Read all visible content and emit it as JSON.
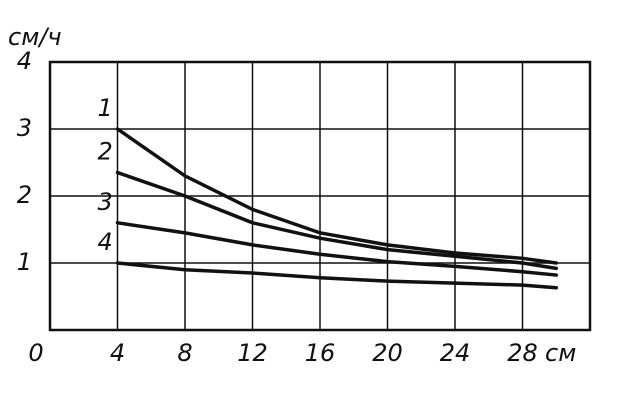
{
  "chart_data": {
    "type": "line",
    "y_label": "см/ч",
    "x_unit": "см",
    "x": [
      4,
      8,
      12,
      16,
      20,
      24,
      28,
      30
    ],
    "series": [
      {
        "name": "1",
        "color": "#111111",
        "values": [
          3.0,
          2.3,
          1.8,
          1.45,
          1.27,
          1.15,
          1.07,
          1.0
        ]
      },
      {
        "name": "2",
        "color": "#111111",
        "values": [
          2.35,
          2.0,
          1.6,
          1.37,
          1.2,
          1.1,
          1.0,
          0.92
        ]
      },
      {
        "name": "3",
        "color": "#111111",
        "values": [
          1.6,
          1.45,
          1.27,
          1.13,
          1.02,
          0.95,
          0.87,
          0.82
        ]
      },
      {
        "name": "4",
        "color": "#111111",
        "values": [
          1.0,
          0.9,
          0.85,
          0.78,
          0.73,
          0.7,
          0.67,
          0.63
        ]
      }
    ],
    "xlim": [
      0,
      32
    ],
    "ylim": [
      0,
      4
    ],
    "xticks": [
      0,
      4,
      8,
      12,
      16,
      20,
      24,
      28
    ],
    "yticks": [
      1,
      2,
      3,
      4
    ],
    "grid": true
  }
}
